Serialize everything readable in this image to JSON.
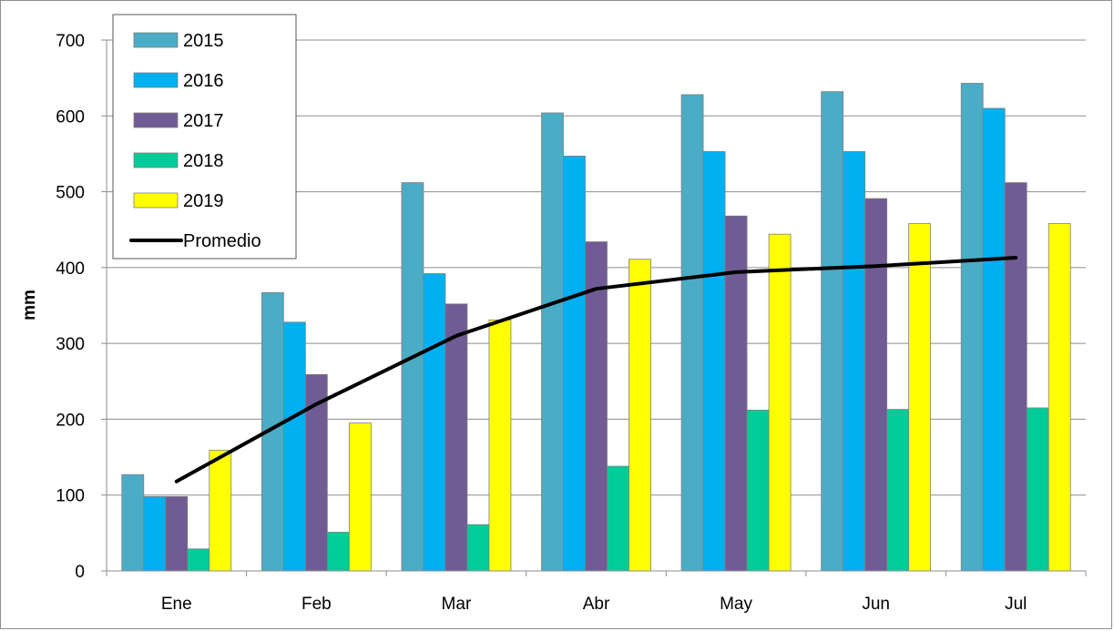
{
  "chart_data": {
    "type": "bar",
    "categories": [
      "Ene",
      "Feb",
      "Mar",
      "Abr",
      "May",
      "Jun",
      "Jul"
    ],
    "series": [
      {
        "name": "2015",
        "type": "bar",
        "color": "#4bacc6",
        "values": [
          127,
          367,
          512,
          604,
          628,
          632,
          643
        ]
      },
      {
        "name": "2016",
        "type": "bar",
        "color": "#00b0f0",
        "values": [
          98,
          328,
          392,
          547,
          553,
          553,
          610
        ]
      },
      {
        "name": "2017",
        "type": "bar",
        "color": "#705b94",
        "values": [
          98,
          259,
          352,
          434,
          468,
          491,
          512
        ]
      },
      {
        "name": "2018",
        "type": "bar",
        "color": "#00cc99",
        "values": [
          29,
          51,
          61,
          138,
          212,
          213,
          215
        ]
      },
      {
        "name": "2019",
        "type": "bar",
        "color": "#ffff00",
        "values": [
          159,
          195,
          331,
          411,
          444,
          458,
          458
        ]
      },
      {
        "name": "Promedio",
        "type": "line",
        "color": "#000000",
        "values": [
          118,
          220,
          310,
          372,
          394,
          402,
          413
        ]
      }
    ],
    "title": "",
    "xlabel": "",
    "ylabel": "mm",
    "ylim": [
      0,
      700
    ],
    "yticks": [
      "0",
      "100",
      "200",
      "300",
      "400",
      "500",
      "600",
      "700"
    ],
    "grid": true,
    "legend_position": "top-left"
  }
}
